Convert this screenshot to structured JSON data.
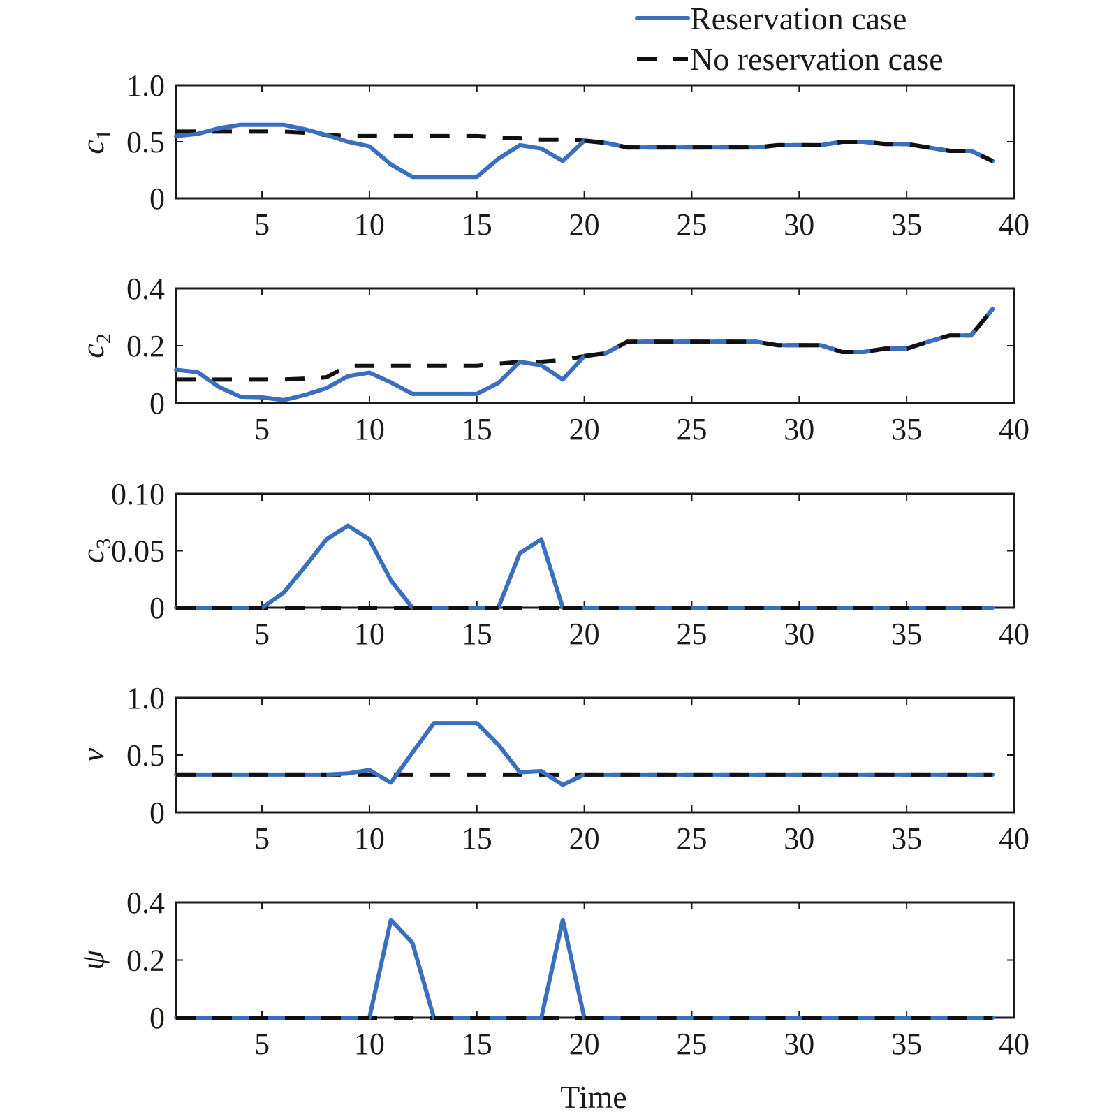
{
  "chart_data": {
    "type": "line",
    "xlabel": "Time",
    "x": [
      1,
      2,
      3,
      4,
      5,
      6,
      7,
      8,
      9,
      10,
      11,
      12,
      13,
      14,
      15,
      16,
      17,
      18,
      19,
      20,
      21,
      22,
      23,
      24,
      25,
      26,
      27,
      28,
      29,
      30,
      31,
      32,
      33,
      34,
      35,
      36,
      37,
      38,
      39
    ],
    "xlim": [
      1,
      40
    ],
    "xticks": [
      5,
      10,
      15,
      20,
      25,
      30,
      35,
      40
    ],
    "legend": {
      "placement": "top-right",
      "entries": [
        {
          "label": "Reservation case",
          "color": "#3a6fbf",
          "style": "solid"
        },
        {
          "label": "No reservation case",
          "color": "#111111",
          "style": "dashed"
        }
      ]
    },
    "panels": [
      {
        "ylabel": "c",
        "ylabel_sub": "1",
        "ylim": [
          0,
          1.0
        ],
        "yticks": [
          0,
          0.5,
          1.0
        ],
        "ytick_labels": [
          "0",
          "0.5",
          "1.0"
        ],
        "series": [
          {
            "name": "Reservation case",
            "values": [
              0.55,
              0.57,
              0.62,
              0.65,
              0.65,
              0.65,
              0.61,
              0.56,
              0.5,
              0.46,
              0.3,
              0.19,
              0.19,
              0.19,
              0.19,
              0.35,
              0.47,
              0.44,
              0.33,
              0.51,
              0.49,
              0.45,
              0.45,
              0.45,
              0.45,
              0.45,
              0.45,
              0.45,
              0.47,
              0.47,
              0.47,
              0.5,
              0.5,
              0.48,
              0.48,
              0.45,
              0.42,
              0.42,
              0.33
            ]
          },
          {
            "name": "No reservation case",
            "values": [
              0.59,
              0.59,
              0.59,
              0.59,
              0.59,
              0.59,
              0.58,
              0.56,
              0.55,
              0.55,
              0.55,
              0.55,
              0.55,
              0.55,
              0.55,
              0.54,
              0.53,
              0.52,
              0.52,
              0.51,
              0.49,
              0.45,
              0.45,
              0.45,
              0.45,
              0.45,
              0.45,
              0.45,
              0.47,
              0.47,
              0.47,
              0.5,
              0.5,
              0.48,
              0.48,
              0.45,
              0.42,
              0.42,
              0.33
            ]
          }
        ]
      },
      {
        "ylabel": "c",
        "ylabel_sub": "2",
        "ylim": [
          0,
          0.4
        ],
        "yticks": [
          0,
          0.2,
          0.4
        ],
        "ytick_labels": [
          "0",
          "0.2",
          "0.4"
        ],
        "series": [
          {
            "name": "Reservation case",
            "values": [
              0.116,
              0.108,
              0.056,
              0.022,
              0.02,
              0.01,
              0.028,
              0.052,
              0.094,
              0.106,
              0.072,
              0.032,
              0.032,
              0.032,
              0.032,
              0.07,
              0.144,
              0.132,
              0.082,
              0.164,
              0.174,
              0.214,
              0.214,
              0.214,
              0.214,
              0.214,
              0.214,
              0.214,
              0.202,
              0.202,
              0.202,
              0.178,
              0.178,
              0.19,
              0.19,
              0.214,
              0.236,
              0.236,
              0.328
            ]
          },
          {
            "name": "No reservation case",
            "values": [
              0.082,
              0.082,
              0.082,
              0.082,
              0.082,
              0.082,
              0.085,
              0.09,
              0.13,
              0.13,
              0.13,
              0.13,
              0.13,
              0.13,
              0.13,
              0.137,
              0.144,
              0.144,
              0.15,
              0.164,
              0.174,
              0.214,
              0.214,
              0.214,
              0.214,
              0.214,
              0.214,
              0.214,
              0.202,
              0.202,
              0.202,
              0.178,
              0.178,
              0.19,
              0.19,
              0.214,
              0.236,
              0.236,
              0.328
            ]
          }
        ]
      },
      {
        "ylabel": "c",
        "ylabel_sub": "3",
        "ylim": [
          0,
          0.1
        ],
        "yticks": [
          0,
          0.05,
          0.1
        ],
        "ytick_labels": [
          "0",
          "0.05",
          "0.10"
        ],
        "series": [
          {
            "name": "Reservation case",
            "values": [
              0,
              0,
              0,
              0,
              0,
              0.013,
              0.036,
              0.06,
              0.072,
              0.06,
              0.024,
              0,
              0,
              0,
              0,
              0,
              0.048,
              0.06,
              0,
              0,
              0,
              0,
              0,
              0,
              0,
              0,
              0,
              0,
              0,
              0,
              0,
              0,
              0,
              0,
              0,
              0,
              0,
              0,
              0
            ]
          },
          {
            "name": "No reservation case",
            "values": [
              0,
              0,
              0,
              0,
              0,
              0,
              0,
              0,
              0,
              0,
              0,
              0,
              0,
              0,
              0,
              0,
              0,
              0,
              0,
              0,
              0,
              0,
              0,
              0,
              0,
              0,
              0,
              0,
              0,
              0,
              0,
              0,
              0,
              0,
              0,
              0,
              0,
              0,
              0
            ]
          }
        ]
      },
      {
        "ylabel": "v",
        "ylim": [
          0,
          1.0
        ],
        "yticks": [
          0,
          0.5,
          1.0
        ],
        "ytick_labels": [
          "0",
          "0.5",
          "1.0"
        ],
        "series": [
          {
            "name": "Reservation case",
            "values": [
              0.33,
              0.33,
              0.33,
              0.33,
              0.33,
              0.33,
              0.33,
              0.33,
              0.34,
              0.37,
              0.26,
              0.52,
              0.78,
              0.78,
              0.78,
              0.59,
              0.35,
              0.36,
              0.24,
              0.33,
              0.33,
              0.33,
              0.33,
              0.33,
              0.33,
              0.33,
              0.33,
              0.33,
              0.33,
              0.33,
              0.33,
              0.33,
              0.33,
              0.33,
              0.33,
              0.33,
              0.33,
              0.33,
              0.33
            ]
          },
          {
            "name": "No reservation case",
            "values": [
              0.33,
              0.33,
              0.33,
              0.33,
              0.33,
              0.33,
              0.33,
              0.33,
              0.33,
              0.33,
              0.33,
              0.33,
              0.33,
              0.33,
              0.33,
              0.33,
              0.33,
              0.33,
              0.33,
              0.33,
              0.33,
              0.33,
              0.33,
              0.33,
              0.33,
              0.33,
              0.33,
              0.33,
              0.33,
              0.33,
              0.33,
              0.33,
              0.33,
              0.33,
              0.33,
              0.33,
              0.33,
              0.33,
              0.33
            ]
          }
        ]
      },
      {
        "ylabel": "ψ",
        "ylim": [
          0,
          0.4
        ],
        "yticks": [
          0,
          0.2,
          0.4
        ],
        "ytick_labels": [
          "0",
          "0.2",
          "0.4"
        ],
        "series": [
          {
            "name": "Reservation case",
            "values": [
              0,
              0,
              0,
              0,
              0,
              0,
              0,
              0,
              0,
              0,
              0.34,
              0.26,
              0,
              0,
              0,
              0,
              0,
              0,
              0.34,
              0,
              0,
              0,
              0,
              0,
              0,
              0,
              0,
              0,
              0,
              0,
              0,
              0,
              0,
              0,
              0,
              0,
              0,
              0,
              0
            ]
          },
          {
            "name": "No reservation case",
            "values": [
              0,
              0,
              0,
              0,
              0,
              0,
              0,
              0,
              0,
              0,
              0,
              0,
              0,
              0,
              0,
              0,
              0,
              0,
              0,
              0,
              0,
              0,
              0,
              0,
              0,
              0,
              0,
              0,
              0,
              0,
              0,
              0,
              0,
              0,
              0,
              0,
              0,
              0,
              0
            ]
          }
        ]
      }
    ]
  }
}
